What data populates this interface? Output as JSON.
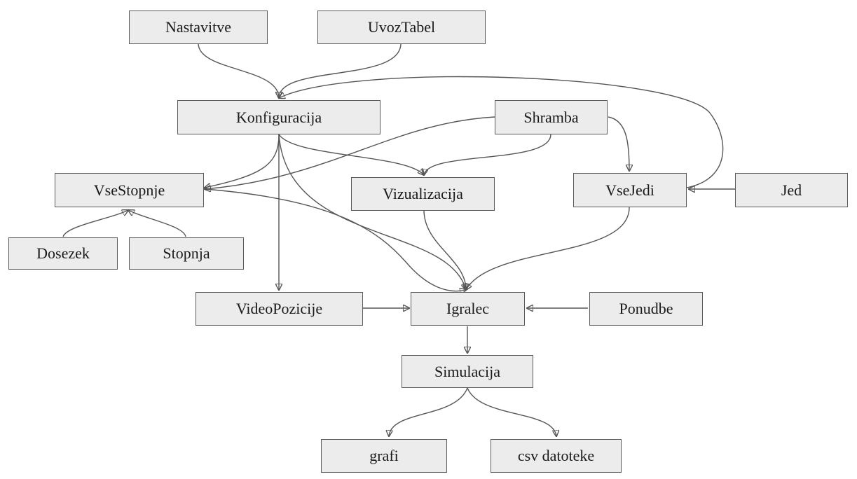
{
  "nodes": {
    "nastavitve": "Nastavitve",
    "uvoztabel": "UvozTabel",
    "konfiguracija": "Konfiguracija",
    "shramba": "Shramba",
    "vsestopnje": "VseStopnje",
    "vizualizacija": "Vizualizacija",
    "vsejedi": "VseJedi",
    "jed": "Jed",
    "dosezek": "Dosezek",
    "stopnja": "Stopnja",
    "videopozicije": "VideoPozicije",
    "igralec": "Igralec",
    "ponudbe": "Ponudbe",
    "simulacija": "Simulacija",
    "grafi": "grafi",
    "csv": "csv datoteke"
  },
  "edges": [
    {
      "from": "nastavitve",
      "to": "konfiguracija"
    },
    {
      "from": "uvoztabel",
      "to": "konfiguracija"
    },
    {
      "from": "vsejedi",
      "to": "konfiguracija"
    },
    {
      "from": "konfiguracija",
      "to": "vsestopnje"
    },
    {
      "from": "konfiguracija",
      "to": "vizualizacija"
    },
    {
      "from": "konfiguracija",
      "to": "videopozicije"
    },
    {
      "from": "konfiguracija",
      "to": "igralec"
    },
    {
      "from": "shramba",
      "to": "vsestopnje"
    },
    {
      "from": "shramba",
      "to": "vizualizacija"
    },
    {
      "from": "shramba",
      "to": "vsejedi"
    },
    {
      "from": "jed",
      "to": "vsejedi"
    },
    {
      "from": "dosezek",
      "to": "vsestopnje"
    },
    {
      "from": "stopnja",
      "to": "vsestopnje"
    },
    {
      "from": "vsestopnje",
      "to": "igralec"
    },
    {
      "from": "vizualizacija",
      "to": "igralec"
    },
    {
      "from": "vsejedi",
      "to": "igralec"
    },
    {
      "from": "videopozicije",
      "to": "igralec"
    },
    {
      "from": "ponudbe",
      "to": "igralec"
    },
    {
      "from": "igralec",
      "to": "simulacija"
    },
    {
      "from": "simulacija",
      "to": "grafi"
    },
    {
      "from": "simulacija",
      "to": "csv"
    }
  ]
}
